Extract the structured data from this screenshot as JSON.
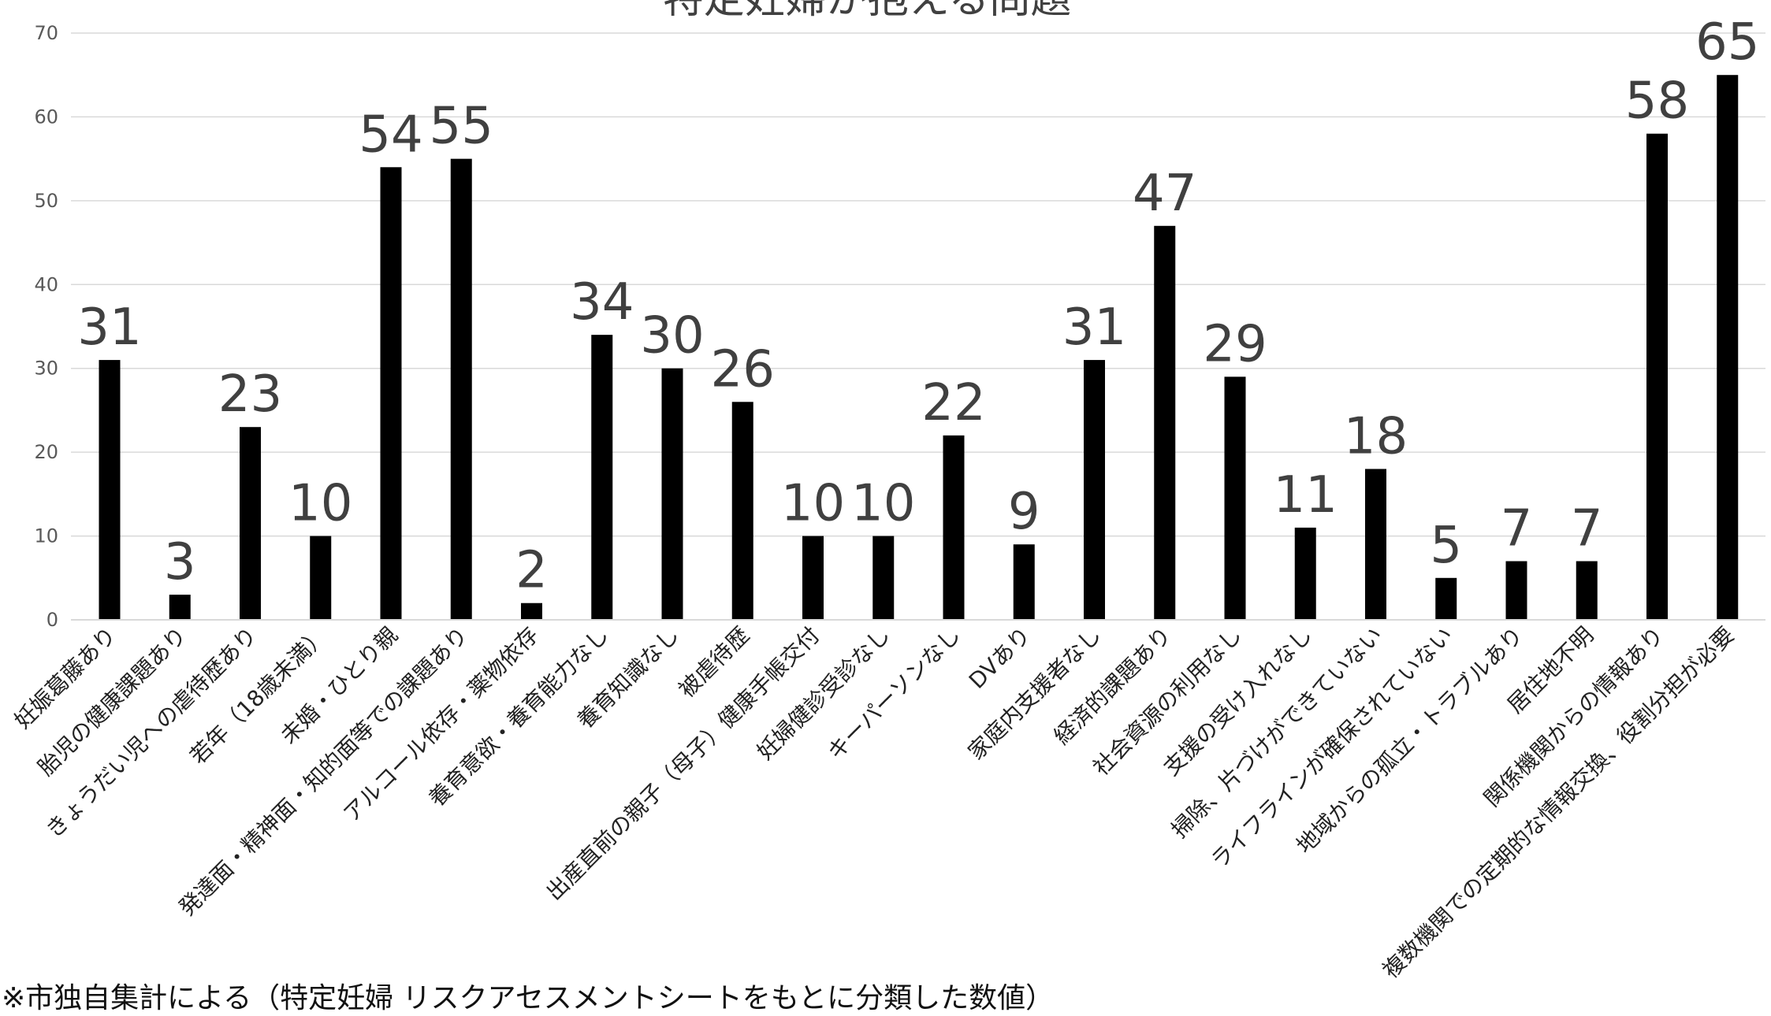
{
  "chart_data": {
    "type": "bar",
    "title": "特定妊婦が抱える問題",
    "categories": [
      "妊娠葛藤あり",
      "胎児の健康課題あり",
      "きょうだい児への虐待歴あり",
      "若年（18歳未満）",
      "未婚・ひとり親",
      "発達面・精神面・知的面等での課題あり",
      "アルコール依存・薬物依存",
      "養育意欲・養育能力なし",
      "養育知識なし",
      "被虐待歴",
      "出産直前の親子（母子）健康手帳交付",
      "妊婦健診受診なし",
      "キーパーソンなし",
      "DVあり",
      "家庭内支援者なし",
      "経済的課題あり",
      "社会資源の利用なし",
      "支援の受け入れなし",
      "掃除、片づけができていない",
      "ライフラインが確保されていない",
      "地域からの孤立・トラブルあり",
      "居住地不明",
      "関係機関からの情報あり",
      "複数機関での定期的な情報交換、役割分担が必要"
    ],
    "values": [
      31,
      3,
      23,
      10,
      54,
      55,
      2,
      34,
      30,
      26,
      10,
      10,
      22,
      9,
      31,
      47,
      29,
      11,
      18,
      5,
      7,
      7,
      58,
      65
    ],
    "ylim": [
      0,
      70
    ],
    "yticks": [
      0,
      10,
      20,
      30,
      40,
      50,
      60,
      70
    ],
    "grid": true,
    "legend": "none",
    "bar_color": "#000000",
    "grid_color": "#d9d9d9",
    "label_color": "#404040",
    "tick_color": "#595959"
  },
  "footnote": "※市独自集計による（特定妊婦 リスクアセスメントシートをもとに分類した数値）"
}
